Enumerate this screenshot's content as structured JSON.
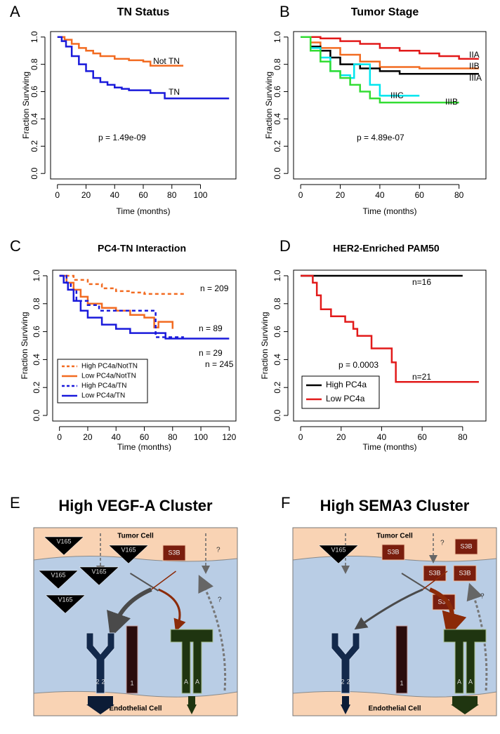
{
  "chart_data": [
    {
      "type": "step",
      "panel": "A",
      "title": "TN Status",
      "xlabel": "Time (months)",
      "ylabel": "Fraction Surviving",
      "annotation": "p = 1.49e-09",
      "xlim": [
        -4.8,
        124.8
      ],
      "xticks": [
        0,
        20,
        40,
        60,
        80,
        100
      ],
      "ylim": [
        -0.04,
        1.04
      ],
      "yticks": [
        {
          "value": 0,
          "label": "0.0"
        },
        {
          "value": 0.2,
          "label": "0.2"
        },
        {
          "value": 0.4,
          "label": "0.4"
        },
        {
          "value": 0.6,
          "label": "0.6"
        },
        {
          "value": 0.8,
          "label": "0.8"
        },
        {
          "value": 1,
          "label": "1.0"
        }
      ],
      "series": [
        {
          "name": "Not TN",
          "color": "#f26b21",
          "x": [
            0,
            5,
            10,
            15,
            20,
            25,
            30,
            40,
            50,
            60,
            65,
            88
          ],
          "values": [
            1,
            0.98,
            0.95,
            0.92,
            0.9,
            0.88,
            0.86,
            0.84,
            0.83,
            0.82,
            0.79,
            0.79
          ]
        },
        {
          "name": "TN",
          "color": "#1a1adb",
          "x": [
            0,
            3,
            6,
            10,
            15,
            20,
            25,
            30,
            35,
            40,
            45,
            50,
            60,
            65,
            70,
            75,
            120
          ],
          "values": [
            1,
            0.97,
            0.93,
            0.86,
            0.8,
            0.75,
            0.7,
            0.67,
            0.65,
            0.63,
            0.62,
            0.61,
            0.61,
            0.59,
            0.59,
            0.55,
            0.55
          ]
        }
      ]
    },
    {
      "type": "step",
      "panel": "B",
      "title": "Tumor Stage",
      "xlabel": "Time (months)",
      "ylabel": "Fraction Surviving",
      "annotation": "p = 4.89e-07",
      "xlim": [
        -3.6,
        93.6
      ],
      "xticks": [
        0,
        20,
        40,
        60,
        80
      ],
      "ylim": [
        -0.04,
        1.04
      ],
      "yticks": [
        {
          "value": 0,
          "label": "0.0"
        },
        {
          "value": 0.2,
          "label": "0.2"
        },
        {
          "value": 0.4,
          "label": "0.4"
        },
        {
          "value": 0.6,
          "label": "0.6"
        },
        {
          "value": 0.8,
          "label": "0.8"
        },
        {
          "value": 1,
          "label": "1.0"
        }
      ],
      "series": [
        {
          "name": "IIA",
          "color": "#e21a1a",
          "x": [
            0,
            10,
            20,
            30,
            40,
            50,
            60,
            70,
            80,
            90
          ],
          "values": [
            1,
            0.99,
            0.97,
            0.95,
            0.92,
            0.9,
            0.88,
            0.86,
            0.84,
            0.84
          ]
        },
        {
          "name": "IIB",
          "color": "#f26b21",
          "x": [
            0,
            5,
            10,
            20,
            30,
            40,
            60,
            90
          ],
          "values": [
            1,
            0.96,
            0.92,
            0.87,
            0.82,
            0.78,
            0.77,
            0.77
          ]
        },
        {
          "name": "IIIA",
          "color": "#000000",
          "x": [
            0,
            5,
            10,
            15,
            20,
            30,
            40,
            50,
            90
          ],
          "values": [
            1,
            0.93,
            0.9,
            0.85,
            0.8,
            0.77,
            0.75,
            0.73,
            0.73
          ]
        },
        {
          "name": "IIIC",
          "color": "#00e5ee",
          "x": [
            0,
            5,
            10,
            15,
            20,
            25,
            27,
            35,
            40,
            60
          ],
          "values": [
            1,
            0.92,
            0.85,
            0.75,
            0.72,
            0.7,
            0.8,
            0.65,
            0.57,
            0.57
          ]
        },
        {
          "name": "IIIB",
          "color": "#33dd33",
          "x": [
            0,
            5,
            10,
            15,
            20,
            25,
            30,
            35,
            40,
            80
          ],
          "values": [
            1,
            0.9,
            0.82,
            0.75,
            0.7,
            0.65,
            0.6,
            0.55,
            0.52,
            0.52
          ]
        }
      ]
    },
    {
      "type": "step",
      "panel": "C",
      "title": "PC4-TN Interaction",
      "xlabel": "Time (months)",
      "ylabel": "Fraction Surviving",
      "legend": "bottom-left",
      "xlim": [
        -4.8,
        124.8
      ],
      "xticks": [
        0,
        20,
        40,
        60,
        80,
        100,
        120
      ],
      "ylim": [
        -0.04,
        1.04
      ],
      "yticks": [
        {
          "value": 0,
          "label": "0.0"
        },
        {
          "value": 0.2,
          "label": "0.2"
        },
        {
          "value": 0.4,
          "label": "0.4"
        },
        {
          "value": 0.6,
          "label": "0.6"
        },
        {
          "value": 0.8,
          "label": "0.8"
        },
        {
          "value": 1,
          "label": "1.0"
        }
      ],
      "series": [
        {
          "name": "High PC4a/NotTN",
          "color": "#f26b21",
          "dashed": true,
          "n_label": "n = 209",
          "x": [
            0,
            10,
            20,
            30,
            40,
            50,
            60,
            88
          ],
          "values": [
            1,
            0.97,
            0.94,
            0.91,
            0.89,
            0.88,
            0.87,
            0.87
          ]
        },
        {
          "name": "Low PC4a/NotTN",
          "color": "#f26b21",
          "dashed": false,
          "n_label": "n = 89",
          "x": [
            0,
            5,
            10,
            15,
            20,
            30,
            40,
            50,
            60,
            67,
            70,
            80
          ],
          "values": [
            1,
            0.95,
            0.9,
            0.85,
            0.8,
            0.77,
            0.75,
            0.72,
            0.7,
            0.63,
            0.67,
            0.62
          ]
        },
        {
          "name": "High PC4a/TN",
          "color": "#1a1adb",
          "dashed": true,
          "n_label": "n = 29",
          "x": [
            0,
            5,
            8,
            12,
            20,
            28,
            40,
            47,
            68,
            80,
            88
          ],
          "values": [
            1,
            0.95,
            0.9,
            0.82,
            0.79,
            0.75,
            0.75,
            0.75,
            0.56,
            0.56,
            0.56
          ]
        },
        {
          "name": "Low PC4a/TN",
          "color": "#1a1adb",
          "dashed": false,
          "n_label": "n = 245",
          "x": [
            0,
            3,
            6,
            10,
            15,
            20,
            30,
            40,
            50,
            70,
            75,
            120
          ],
          "values": [
            1,
            0.95,
            0.9,
            0.82,
            0.75,
            0.7,
            0.65,
            0.62,
            0.59,
            0.59,
            0.55,
            0.55
          ]
        }
      ]
    },
    {
      "type": "step",
      "panel": "D",
      "title": "HER2-Enriched PAM50",
      "xlabel": "Time (months)",
      "ylabel": "Fraction Surviving",
      "annotation": "p = 0.0003",
      "legend": "bottom-left",
      "xlim": [
        -3.5,
        91.5
      ],
      "xticks": [
        0,
        20,
        40,
        60,
        80
      ],
      "ylim": [
        -0.04,
        1.04
      ],
      "yticks": [
        {
          "value": 0,
          "label": "0.0"
        },
        {
          "value": 0.2,
          "label": "0.2"
        },
        {
          "value": 0.4,
          "label": "0.4"
        },
        {
          "value": 0.6,
          "label": "0.6"
        },
        {
          "value": 0.8,
          "label": "0.8"
        },
        {
          "value": 1,
          "label": "1.0"
        }
      ],
      "series": [
        {
          "name": "High PC4a",
          "color": "#000000",
          "dashed": false,
          "n_label": "n=16",
          "x": [
            0,
            80
          ],
          "values": [
            1,
            1
          ]
        },
        {
          "name": "Low PC4a",
          "color": "#e21a1a",
          "dashed": false,
          "n_label": "n=21",
          "x": [
            0,
            6,
            8,
            10,
            15,
            22,
            26,
            28,
            35,
            45,
            47,
            88
          ],
          "values": [
            1,
            0.95,
            0.86,
            0.76,
            0.71,
            0.67,
            0.62,
            0.57,
            0.48,
            0.38,
            0.24,
            0.24
          ]
        }
      ]
    }
  ],
  "diagrams": [
    {
      "panel": "E",
      "title": "High VEGF-A Cluster",
      "top_label": "Tumor Cell",
      "bottom_label": "Endothelial Cell",
      "v165": [
        "V165",
        "V165",
        "V165",
        "V165",
        "V165"
      ],
      "s3b": [
        "S3B"
      ],
      "questions": [
        "?",
        "?"
      ],
      "receptor_labels": [
        "2",
        "2",
        "1",
        "A",
        "A"
      ]
    },
    {
      "panel": "F",
      "title": "High SEMA3 Cluster",
      "top_label": "Tumor Cell",
      "bottom_label": "Endothelial Cell",
      "v165": [
        "V165"
      ],
      "s3b": [
        "S3B",
        "S3B",
        "S3B",
        "S3B",
        "S3B"
      ],
      "questions": [
        "?",
        "?"
      ],
      "receptor_labels": [
        "2",
        "2",
        "1",
        "A",
        "A"
      ]
    }
  ]
}
